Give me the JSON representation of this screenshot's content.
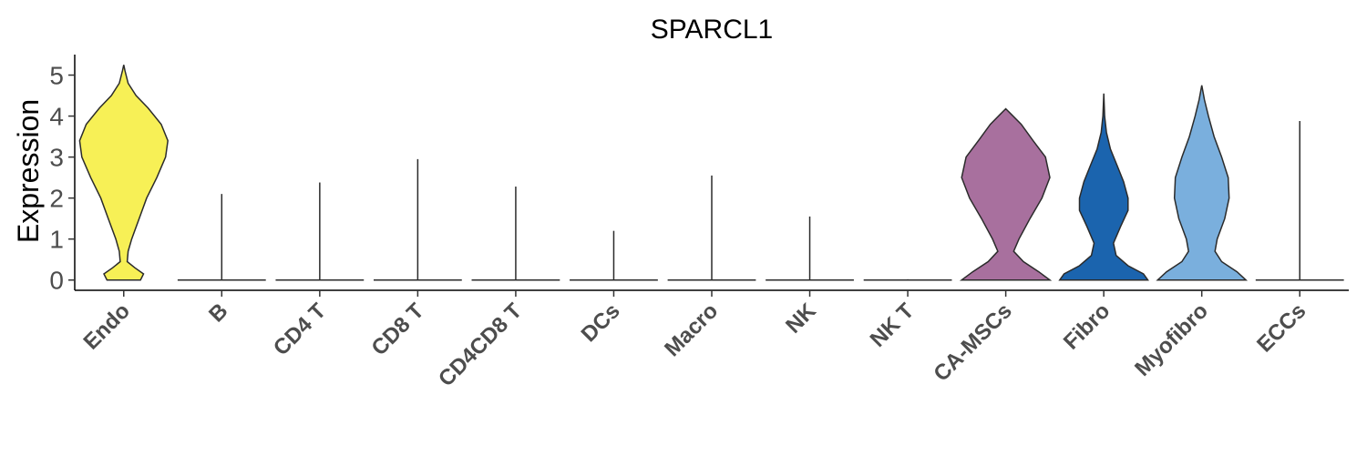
{
  "chart_data": {
    "type": "violin",
    "title": "SPARCL1",
    "xlabel": "",
    "ylabel": "Expression",
    "ylim": [
      -0.25,
      5.5
    ],
    "yticks": [
      "0",
      "1",
      "2",
      "3",
      "4",
      "5"
    ],
    "grid": false,
    "legend": "none",
    "categories": [
      "Endo",
      "B",
      "CD4 T",
      "CD8 T",
      "CD4CD8 T",
      "DCs",
      "Macro",
      "NK",
      "NK T",
      "CA-MSCs",
      "Fibro",
      "Myofibro",
      "ECCs"
    ],
    "series": [
      {
        "color": "#F7F056",
        "max": 5.25,
        "profile": [
          [
            0,
            0.38
          ],
          [
            0.15,
            0.45
          ],
          [
            0.3,
            0.25
          ],
          [
            0.45,
            0.08
          ],
          [
            0.7,
            0.1
          ],
          [
            1,
            0.18
          ],
          [
            1.5,
            0.35
          ],
          [
            2,
            0.52
          ],
          [
            2.5,
            0.75
          ],
          [
            3,
            0.95
          ],
          [
            3.4,
            1.0
          ],
          [
            3.8,
            0.85
          ],
          [
            4.2,
            0.55
          ],
          [
            4.5,
            0.28
          ],
          [
            4.8,
            0.1
          ],
          [
            5.1,
            0.03
          ],
          [
            5.25,
            0
          ]
        ]
      },
      {
        "color": "#2b2b2b",
        "max": 2.1,
        "profile": [
          [
            0,
            1
          ],
          [
            0.03,
            0.02
          ],
          [
            2.1,
            0
          ]
        ]
      },
      {
        "color": "#2b2b2b",
        "max": 2.38,
        "profile": [
          [
            0,
            1
          ],
          [
            0.03,
            0.02
          ],
          [
            2.38,
            0
          ]
        ]
      },
      {
        "color": "#2b2b2b",
        "max": 2.95,
        "profile": [
          [
            0,
            1
          ],
          [
            0.03,
            0.02
          ],
          [
            2.95,
            0
          ]
        ]
      },
      {
        "color": "#2b2b2b",
        "max": 2.28,
        "profile": [
          [
            0,
            1
          ],
          [
            0.03,
            0.02
          ],
          [
            2.28,
            0
          ]
        ]
      },
      {
        "color": "#2b2b2b",
        "max": 1.2,
        "profile": [
          [
            0,
            1
          ],
          [
            0.03,
            0.02
          ],
          [
            1.2,
            0
          ]
        ]
      },
      {
        "color": "#2b2b2b",
        "max": 2.55,
        "profile": [
          [
            0,
            1
          ],
          [
            0.03,
            0.02
          ],
          [
            2.55,
            0
          ]
        ]
      },
      {
        "color": "#2b2b2b",
        "max": 1.55,
        "profile": [
          [
            0,
            1
          ],
          [
            0.03,
            0.02
          ],
          [
            1.55,
            0
          ]
        ]
      },
      {
        "color": "#2b2b2b",
        "max": 0.02,
        "profile": [
          [
            0,
            1
          ],
          [
            0.02,
            0
          ]
        ]
      },
      {
        "color": "#A8709E",
        "max": 4.18,
        "profile": [
          [
            0,
            1.0
          ],
          [
            0.2,
            0.75
          ],
          [
            0.45,
            0.4
          ],
          [
            0.7,
            0.18
          ],
          [
            1,
            0.3
          ],
          [
            1.5,
            0.55
          ],
          [
            2,
            0.82
          ],
          [
            2.5,
            1.0
          ],
          [
            3,
            0.9
          ],
          [
            3.4,
            0.62
          ],
          [
            3.8,
            0.35
          ],
          [
            4.05,
            0.12
          ],
          [
            4.18,
            0
          ]
        ]
      },
      {
        "color": "#1B64AE",
        "max": 4.55,
        "profile": [
          [
            0,
            1.0
          ],
          [
            0.15,
            0.9
          ],
          [
            0.35,
            0.55
          ],
          [
            0.6,
            0.28
          ],
          [
            0.9,
            0.22
          ],
          [
            1.3,
            0.38
          ],
          [
            1.7,
            0.55
          ],
          [
            2,
            0.55
          ],
          [
            2.4,
            0.45
          ],
          [
            2.8,
            0.3
          ],
          [
            3.2,
            0.15
          ],
          [
            3.6,
            0.06
          ],
          [
            4,
            0.02
          ],
          [
            4.55,
            0
          ]
        ]
      },
      {
        "color": "#7AAFDD",
        "max": 4.75,
        "profile": [
          [
            0,
            1.0
          ],
          [
            0.2,
            0.8
          ],
          [
            0.45,
            0.45
          ],
          [
            0.7,
            0.3
          ],
          [
            1,
            0.35
          ],
          [
            1.5,
            0.52
          ],
          [
            2,
            0.62
          ],
          [
            2.5,
            0.6
          ],
          [
            3,
            0.45
          ],
          [
            3.5,
            0.28
          ],
          [
            4,
            0.15
          ],
          [
            4.4,
            0.06
          ],
          [
            4.75,
            0
          ]
        ]
      },
      {
        "color": "#2b2b2b",
        "max": 3.88,
        "profile": [
          [
            0,
            1
          ],
          [
            0.03,
            0.02
          ],
          [
            3.88,
            0
          ]
        ]
      }
    ]
  }
}
